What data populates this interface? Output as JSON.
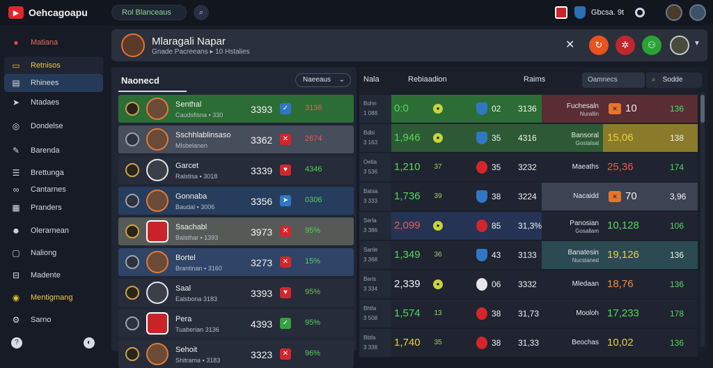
{
  "topbar": {
    "app_name": "Oehcagoapu",
    "search_text": "Rol Blanceaus",
    "score_text": "Gbcsa. 9t"
  },
  "sidebar": {
    "items": [
      {
        "label": "Matiana",
        "icon": "home-icon",
        "glyph": "●",
        "style": "red"
      },
      {
        "label": "Retnisos",
        "icon": "folder-icon",
        "glyph": "▭",
        "style": "yellow"
      },
      {
        "label": "Rhinees",
        "icon": "grid-icon",
        "glyph": "▤",
        "style": "active"
      },
      {
        "label": "Ntadaes",
        "icon": "arrow-icon",
        "glyph": "➤",
        "style": ""
      },
      {
        "label": "Dondelse",
        "icon": "target-icon",
        "glyph": "◎",
        "style": ""
      },
      {
        "label": "Barenda",
        "icon": "wrench-icon",
        "glyph": "✎",
        "style": ""
      },
      {
        "label": "Brettunga",
        "icon": "list-icon",
        "glyph": "☰",
        "style": ""
      },
      {
        "label": "Cantarnes",
        "icon": "link-icon",
        "glyph": "∞",
        "style": ""
      },
      {
        "label": "Pranders",
        "icon": "calendar-icon",
        "glyph": "▦",
        "style": ""
      },
      {
        "label": "Olerarnean",
        "icon": "user-icon",
        "glyph": "☻",
        "style": ""
      },
      {
        "label": "Naliong",
        "icon": "chat-icon",
        "glyph": "▢",
        "style": ""
      },
      {
        "label": "Madente",
        "icon": "inbox-icon",
        "glyph": "⊟",
        "style": ""
      },
      {
        "label": "Mentigmang",
        "icon": "coin-icon",
        "glyph": "◉",
        "style": "yellow"
      },
      {
        "label": "Sarno",
        "icon": "gear-icon",
        "glyph": "⚙",
        "style": ""
      }
    ]
  },
  "profile": {
    "name": "Mlaragali Napar",
    "subtitle": "Gnade Pacreeans ▸ 10 Hstalies"
  },
  "left_panel": {
    "title": "Naonecd",
    "select_label": "Naeeaus",
    "rows": [
      {
        "name": "Senthal",
        "meta": "Caudsfisna ▪ 330",
        "score": "3393",
        "flag": "✓",
        "pct": "3136",
        "bg": "green",
        "flag_color": "blue",
        "pct_color": "red",
        "avatar": ""
      },
      {
        "name": "Sschhlablinsaso",
        "meta": "Mlsbelanen",
        "score": "3362",
        "flag": "✕",
        "pct": "2674",
        "bg": "grey",
        "flag_color": "red",
        "pct_color": "red",
        "avatar": ""
      },
      {
        "name": "Garcet",
        "meta": "Ralstisa ▪ 3018",
        "score": "3339",
        "flag": "♥",
        "pct": "4346",
        "bg": "dark",
        "flag_color": "red",
        "pct_color": "green",
        "avatar": "w"
      },
      {
        "name": "Gonnaba",
        "meta": "Baudal ▪ 3006",
        "score": "3356",
        "flag": "➤",
        "pct": "0306",
        "bg": "blue",
        "flag_color": "blue",
        "pct_color": "green",
        "avatar": ""
      },
      {
        "name": "Ssachabl",
        "meta": "Balsthar ▪ 1393",
        "score": "3973",
        "flag": "✕",
        "pct": "95%",
        "bg": "olive",
        "flag_color": "red",
        "pct_color": "green",
        "avatar": "shield"
      },
      {
        "name": "Bortel",
        "meta": "Brantinan ▪ 3160",
        "score": "3273",
        "flag": "✕",
        "pct": "15%",
        "bg": "blue2",
        "flag_color": "red",
        "pct_color": "green",
        "avatar": ""
      },
      {
        "name": "Saal",
        "meta": "Ealsbona 3183",
        "score": "3393",
        "flag": "♥",
        "pct": "95%",
        "bg": "dark",
        "flag_color": "red",
        "pct_color": "green",
        "avatar": "w"
      },
      {
        "name": "Pera",
        "meta": "Tuaberian 3136",
        "score": "4393",
        "flag": "✓",
        "pct": "95%",
        "bg": "dark",
        "flag_color": "green",
        "pct_color": "green",
        "avatar": "shield"
      },
      {
        "name": "Sehoit",
        "meta": "Shitrama ▪ 3183",
        "score": "3323",
        "flag": "✕",
        "pct": "96%",
        "bg": "dark",
        "flag_color": "red",
        "pct_color": "green",
        "avatar": ""
      }
    ]
  },
  "right_panel": {
    "col1": "Nala",
    "col2": "Rebiaadion",
    "col3": "Raims",
    "search_placeholder": "Oamnecs",
    "search_button": "Sodde",
    "rows": [
      {
        "d1": "Bohn",
        "d2": "1 088",
        "odds": "0:0",
        "odds_color": "green",
        "c1_bg": "bg-green1",
        "dot": "●",
        "shield": "",
        "n1": "02",
        "n2": "3136",
        "c2_bg": "bg-maroon",
        "lab": "Fuchesaln",
        "lab2": "Nurallin",
        "c3_bg": "bg-maroon",
        "chip": "✕",
        "v1": "10",
        "v1_color": "white",
        "v2": "136",
        "v2_color": "green"
      },
      {
        "d1": "Bdbi",
        "d2": "3 163",
        "odds": "1,946",
        "odds_color": "green",
        "c1_bg": "bg-green2",
        "dot": "●",
        "shield": "",
        "n1": "35",
        "n2": "4316",
        "c2_bg": "bg-green2",
        "lab": "Bansoral",
        "lab2": "Gostalsal",
        "c3_bg": "bg-amber",
        "chip": "",
        "v1": "15,06",
        "v1_color": "yellow",
        "v2": "138",
        "v2_color": "white"
      },
      {
        "d1": "Oetla",
        "d2": "3 536",
        "odds": "1,210",
        "odds_color": "green",
        "c1_bg": "bg-dark",
        "dot": "37",
        "shield": "red",
        "n1": "35",
        "n2": "3232",
        "c2_bg": "bg-dark",
        "lab": "Maeaths",
        "lab2": "",
        "c3_bg": "bg-dark",
        "chip": "",
        "v1": "25,36",
        "v1_color": "red",
        "v2": "174",
        "v2_color": "green"
      },
      {
        "d1": "Batsa",
        "d2": "3 333",
        "odds": "1,736",
        "odds_color": "green",
        "c1_bg": "bg-dark",
        "dot": "39",
        "shield": "",
        "n1": "38",
        "n2": "3224",
        "c2_bg": "bg-slate",
        "lab": "Nacaidd",
        "lab2": "",
        "c3_bg": "bg-slate",
        "chip": "✕",
        "v1": "70",
        "v1_color": "white",
        "v2": "3,96",
        "v2_color": "white"
      },
      {
        "d1": "Serla",
        "d2": "3 386",
        "odds": "2,099",
        "odds_color": "red",
        "c1_bg": "bg-navy",
        "dot": "●",
        "shield": "red",
        "n1": "85",
        "n2": "31,3%",
        "c2_bg": "bg-dark",
        "lab": "Panosian",
        "lab2": "Gosallam",
        "c3_bg": "bg-dark",
        "chip": "",
        "v1": "10,128",
        "v1_color": "green",
        "v2": "106",
        "v2_color": "green"
      },
      {
        "d1": "Sanle",
        "d2": "3 368",
        "odds": "1,349",
        "odds_color": "green",
        "c1_bg": "bg-dark",
        "dot": "36",
        "shield": "",
        "n1": "43",
        "n2": "3133",
        "c2_bg": "bg-teal",
        "lab": "Banatesin",
        "lab2": "Nucstaned",
        "c3_bg": "bg-teal",
        "chip": "",
        "v1": "19,126",
        "v1_color": "yellow",
        "v2": "136",
        "v2_color": "white"
      },
      {
        "d1": "Berls",
        "d2": "3 334",
        "odds": "2,339",
        "odds_color": "white",
        "c1_bg": "bg-dark",
        "dot": "●",
        "shield": "ball",
        "n1": "06",
        "n2": "3332",
        "c2_bg": "bg-dark",
        "lab": "Mledaan",
        "lab2": "",
        "c3_bg": "bg-dark",
        "chip": "",
        "v1": "18,76",
        "v1_color": "orange",
        "v2": "136",
        "v2_color": "green"
      },
      {
        "d1": "Bhtla",
        "d2": "3 508",
        "odds": "1,574",
        "odds_color": "green",
        "c1_bg": "bg-dark",
        "dot": "13",
        "shield": "red",
        "n1": "38",
        "n2": "31,73",
        "c2_bg": "bg-dark",
        "lab": "Mooloh",
        "lab2": "",
        "c3_bg": "bg-dark",
        "chip": "",
        "v1": "17,233",
        "v1_color": "green",
        "v2": "178",
        "v2_color": "green"
      },
      {
        "d1": "Bbtls",
        "d2": "3 338",
        "odds": "1,740",
        "odds_color": "yellow",
        "c1_bg": "bg-dark",
        "dot": "35",
        "shield": "red",
        "n1": "38",
        "n2": "31,33",
        "c2_bg": "bg-dark",
        "lab": "Beochas",
        "lab2": "",
        "c3_bg": "bg-dark",
        "chip": "",
        "v1": "10,02",
        "v1_color": "yellow",
        "v2": "136",
        "v2_color": "green"
      }
    ]
  }
}
